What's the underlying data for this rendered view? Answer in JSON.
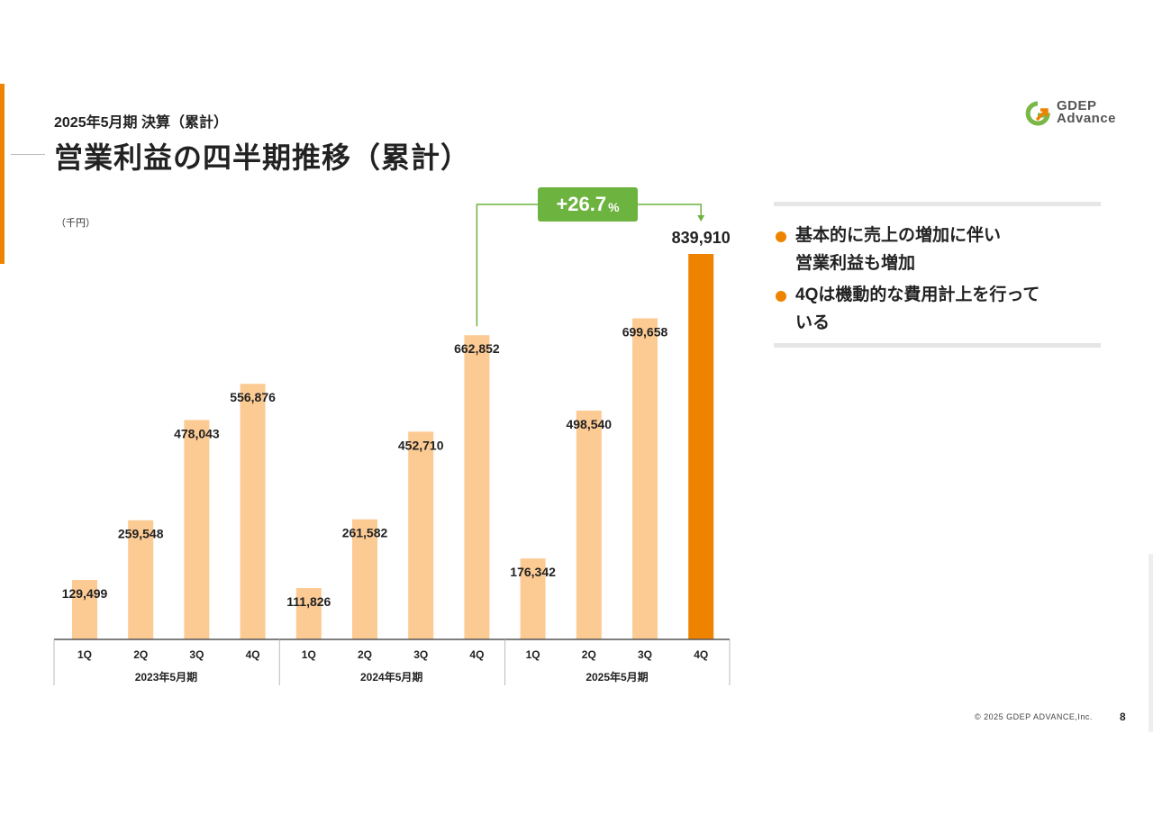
{
  "header": {
    "subtitle": "2025年5月期 決算（累計）",
    "title": "営業利益の四半期推移（累計）",
    "unit": "（千円）"
  },
  "logo": {
    "line1": "GDEP",
    "line2": "Advance",
    "icon": "gdep-logo-icon"
  },
  "growth": {
    "value": "+26.7",
    "unit": "%"
  },
  "notes": [
    {
      "text": "基本的に売上の増加に伴い\n営業利益も増加"
    },
    {
      "text": "4Qは機動的な費用計上を行って\nいる"
    }
  ],
  "footer": {
    "copyright": "© 2025 GDEP ADVANCE,Inc.",
    "page": "8"
  },
  "colors": {
    "accent": "#ee8300",
    "bar": "#fcca93",
    "highlight": "#ee8300",
    "growth": "#6db33f"
  },
  "chart_data": {
    "type": "bar",
    "title": "営業利益の四半期推移（累計）",
    "unit": "（千円）",
    "ylabel": "",
    "ylim": [
      0,
      850000
    ],
    "grid": false,
    "legend": "none",
    "groups": [
      {
        "name": "2023年5月期",
        "categories": [
          "1Q",
          "2Q",
          "3Q",
          "4Q"
        ],
        "values": [
          129499,
          259548,
          478043,
          556876
        ],
        "labels": [
          "129,499",
          "259,548",
          "478,043",
          "556,876"
        ]
      },
      {
        "name": "2024年5月期",
        "categories": [
          "1Q",
          "2Q",
          "3Q",
          "4Q"
        ],
        "values": [
          111826,
          261582,
          452710,
          662852
        ],
        "labels": [
          "111,826",
          "261,582",
          "452,710",
          "662,852"
        ]
      },
      {
        "name": "2025年5月期",
        "categories": [
          "1Q",
          "2Q",
          "3Q",
          "4Q"
        ],
        "values": [
          176342,
          498540,
          699658,
          839910
        ],
        "labels": [
          "176,342",
          "498,540",
          "699,658",
          "839,910"
        ]
      }
    ],
    "highlight": {
      "group": 2,
      "index": 3
    },
    "annotation": {
      "from": {
        "group": 1,
        "index": 3
      },
      "to": {
        "group": 2,
        "index": 3
      },
      "text": "+26.7%"
    }
  }
}
